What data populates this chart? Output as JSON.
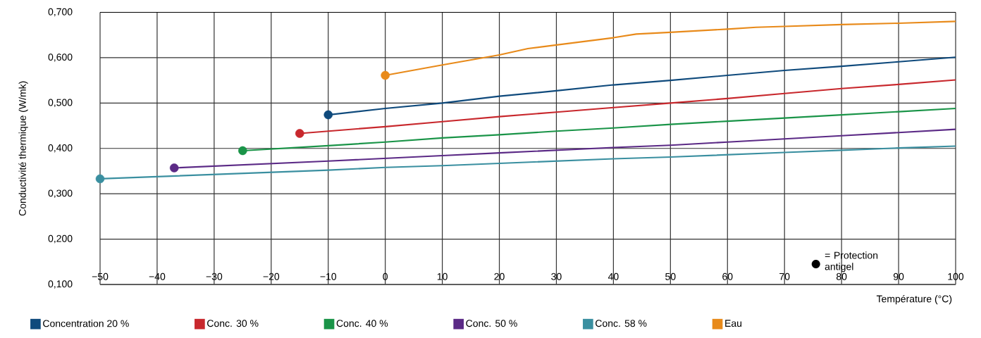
{
  "chart_data": {
    "type": "line",
    "xlabel": "Température (°C)",
    "ylabel": "Conductivité thermique (W/mk)",
    "xlim": [
      -50,
      100
    ],
    "xticks": [
      {
        "value": -50,
        "label": "−50"
      },
      {
        "value": -40,
        "label": "−40"
      },
      {
        "value": -30,
        "label": "−30"
      },
      {
        "value": -20,
        "label": "−20"
      },
      {
        "value": -10,
        "label": "−10"
      },
      0,
      10,
      20,
      30,
      40,
      50,
      60,
      70,
      80,
      90,
      100
    ],
    "ylim": [
      0.1,
      0.7
    ],
    "yticks": [
      {
        "value": 0.1,
        "label": "0,100"
      },
      {
        "value": 0.2,
        "label": "0,200"
      },
      {
        "value": 0.3,
        "label": "0,300"
      },
      {
        "value": 0.4,
        "label": "0,400"
      },
      {
        "value": 0.5,
        "label": "0,500"
      },
      {
        "value": 0.6,
        "label": "0,600"
      },
      {
        "value": 0.7,
        "label": "0,700"
      }
    ],
    "grid": true,
    "legend": "bottom",
    "annotations": [
      "= Protection antigel"
    ],
    "series": [
      {
        "type": "scatter",
        "marker": "circle",
        "x": [
          -10,
          -15,
          -25,
          -37,
          -50,
          0
        ],
        "values": [
          0.474,
          0.433,
          0.395,
          0.357,
          0.333,
          0.561
        ],
        "colors": [
          "#0f4a7c",
          "#c8282d",
          "#1a9448",
          "#5b2a86",
          "#3a8fa0",
          "#e88a1a"
        ]
      },
      {
        "name": "Concentration 20 %",
        "color": "#0f4a7c",
        "x": [
          -10,
          0,
          10,
          20,
          30,
          40,
          50,
          60,
          70,
          80,
          90,
          100
        ],
        "values": [
          0.474,
          0.488,
          0.5,
          0.515,
          0.527,
          0.54,
          0.55,
          0.561,
          0.572,
          0.581,
          0.591,
          0.601
        ]
      },
      {
        "name": "Conc. 30 %",
        "color": "#c8282d",
        "x": [
          -15,
          0,
          10,
          20,
          30,
          40,
          50,
          60,
          70,
          80,
          90,
          100
        ],
        "values": [
          0.433,
          0.448,
          0.459,
          0.47,
          0.48,
          0.49,
          0.5,
          0.51,
          0.521,
          0.532,
          0.541,
          0.551
        ]
      },
      {
        "name": "Conc. 40 %",
        "color": "#1a9448",
        "x": [
          -25,
          -10,
          0,
          10,
          20,
          30,
          40,
          50,
          60,
          70,
          80,
          90,
          100
        ],
        "values": [
          0.395,
          0.406,
          0.414,
          0.423,
          0.43,
          0.438,
          0.445,
          0.453,
          0.46,
          0.467,
          0.474,
          0.481,
          0.488
        ]
      },
      {
        "name": "Conc. 50 %",
        "color": "#5b2a86",
        "x": [
          -37,
          -10,
          0,
          10,
          20,
          30,
          40,
          50,
          60,
          70,
          80,
          90,
          100
        ],
        "values": [
          0.357,
          0.372,
          0.378,
          0.384,
          0.39,
          0.396,
          0.402,
          0.407,
          0.414,
          0.421,
          0.428,
          0.435,
          0.442
        ]
      },
      {
        "name": "Conc. 58 %",
        "color": "#3a8fa0",
        "x": [
          -50,
          -10,
          0,
          10,
          20,
          30,
          40,
          50,
          60,
          70,
          80,
          90,
          100
        ],
        "values": [
          0.333,
          0.352,
          0.358,
          0.362,
          0.367,
          0.372,
          0.377,
          0.381,
          0.386,
          0.391,
          0.396,
          0.401,
          0.405
        ]
      },
      {
        "name": "Eau",
        "color": "#e88a1a",
        "x": [
          0,
          10,
          20,
          25,
          30,
          40,
          44,
          50,
          60,
          65,
          70,
          80,
          90,
          100
        ],
        "values": [
          0.561,
          0.584,
          0.606,
          0.62,
          0.628,
          0.644,
          0.652,
          0.656,
          0.663,
          0.667,
          0.669,
          0.673,
          0.676,
          0.68
        ]
      }
    ]
  }
}
